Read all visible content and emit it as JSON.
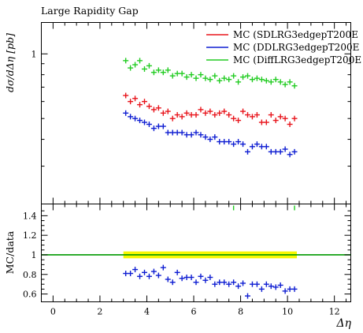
{
  "chart_data": [
    {
      "type": "scatter",
      "title": "Large Rapidity Gap",
      "xlabel": "",
      "ylabel": "dσ/dΔη [pb]",
      "y_scale": "log",
      "ylim": [
        0.2,
        1.4
      ],
      "xlim": [
        -0.5,
        12.7
      ],
      "y_ticks": [
        "1"
      ],
      "marker": "cross",
      "legend_position": "top-right",
      "x": [
        3.1,
        3.3,
        3.5,
        3.7,
        3.9,
        4.1,
        4.3,
        4.5,
        4.7,
        4.9,
        5.1,
        5.3,
        5.5,
        5.7,
        5.9,
        6.1,
        6.3,
        6.5,
        6.7,
        6.9,
        7.1,
        7.3,
        7.5,
        7.7,
        7.9,
        8.1,
        8.3,
        8.5,
        8.7,
        8.9,
        9.1,
        9.3,
        9.5,
        9.7,
        9.9,
        10.1,
        10.3
      ],
      "series": [
        {
          "name": "MC (SDLRG3edgepT200E",
          "color": "#e8151c",
          "values": [
            0.64,
            0.6,
            0.62,
            0.58,
            0.6,
            0.57,
            0.55,
            0.56,
            0.53,
            0.54,
            0.5,
            0.52,
            0.51,
            0.53,
            0.52,
            0.52,
            0.55,
            0.53,
            0.54,
            0.52,
            0.53,
            0.54,
            0.52,
            0.5,
            0.49,
            0.54,
            0.52,
            0.51,
            0.52,
            0.48,
            0.48,
            0.52,
            0.49,
            0.51,
            0.5,
            0.47,
            0.5
          ]
        },
        {
          "name": "MC (DDLRG3edgepT200E",
          "color": "#0f1ed2",
          "values": [
            0.53,
            0.51,
            0.5,
            0.49,
            0.48,
            0.47,
            0.45,
            0.46,
            0.46,
            0.43,
            0.43,
            0.43,
            0.43,
            0.42,
            0.42,
            0.43,
            0.42,
            0.41,
            0.4,
            0.41,
            0.39,
            0.39,
            0.39,
            0.38,
            0.39,
            0.38,
            0.35,
            0.37,
            0.38,
            0.37,
            0.37,
            0.35,
            0.35,
            0.35,
            0.36,
            0.34,
            0.35
          ]
        },
        {
          "name": "MC (DiffLRG3edgepT200E",
          "color": "#22cc22",
          "values": [
            0.93,
            0.86,
            0.89,
            0.93,
            0.85,
            0.88,
            0.82,
            0.84,
            0.82,
            0.84,
            0.79,
            0.81,
            0.81,
            0.78,
            0.8,
            0.77,
            0.8,
            0.77,
            0.76,
            0.79,
            0.75,
            0.77,
            0.76,
            0.79,
            0.74,
            0.78,
            0.79,
            0.76,
            0.77,
            0.76,
            0.75,
            0.74,
            0.76,
            0.74,
            0.72,
            0.74,
            0.71
          ]
        }
      ]
    },
    {
      "type": "scatter",
      "title": "",
      "xlabel": "Δη",
      "ylabel": "MC/data",
      "xlim": [
        -0.5,
        12.7
      ],
      "ylim": [
        0.52,
        1.52
      ],
      "x_ticks": [
        0,
        2,
        4,
        6,
        8,
        10,
        12
      ],
      "y_ticks": [
        "0.6",
        "0.8",
        "1",
        "1.2",
        "1.4"
      ],
      "reference_line": {
        "value": 1.0,
        "color": "#009900"
      },
      "uncertainty_band": {
        "x_range": [
          3.0,
          10.4
        ],
        "half_width": 0.035,
        "color": "#f7f700"
      },
      "x": [
        3.1,
        3.3,
        3.5,
        3.7,
        3.9,
        4.1,
        4.3,
        4.5,
        4.7,
        4.9,
        5.1,
        5.3,
        5.5,
        5.7,
        5.9,
        6.1,
        6.3,
        6.5,
        6.7,
        6.9,
        7.1,
        7.3,
        7.5,
        7.7,
        7.9,
        8.1,
        8.3,
        8.5,
        8.7,
        8.9,
        9.1,
        9.3,
        9.5,
        9.7,
        9.9,
        10.1,
        10.3
      ],
      "series": [
        {
          "name": "MC (DDLRG3edgepT200E",
          "color": "#0f1ed2",
          "values": [
            0.81,
            0.81,
            0.85,
            0.78,
            0.82,
            0.78,
            0.83,
            0.79,
            0.87,
            0.75,
            0.72,
            0.82,
            0.76,
            0.77,
            0.77,
            0.72,
            0.78,
            0.74,
            0.77,
            0.7,
            0.72,
            0.72,
            0.7,
            0.72,
            0.68,
            0.71,
            0.58,
            0.7,
            0.7,
            0.65,
            0.7,
            0.68,
            0.67,
            0.69,
            0.63,
            0.65,
            0.65
          ]
        },
        {
          "name": "MC (DiffLRG3edgepT200E",
          "color": "#22cc22",
          "markers_at_top_edge_x": [
            7.7,
            10.3
          ]
        }
      ]
    }
  ]
}
